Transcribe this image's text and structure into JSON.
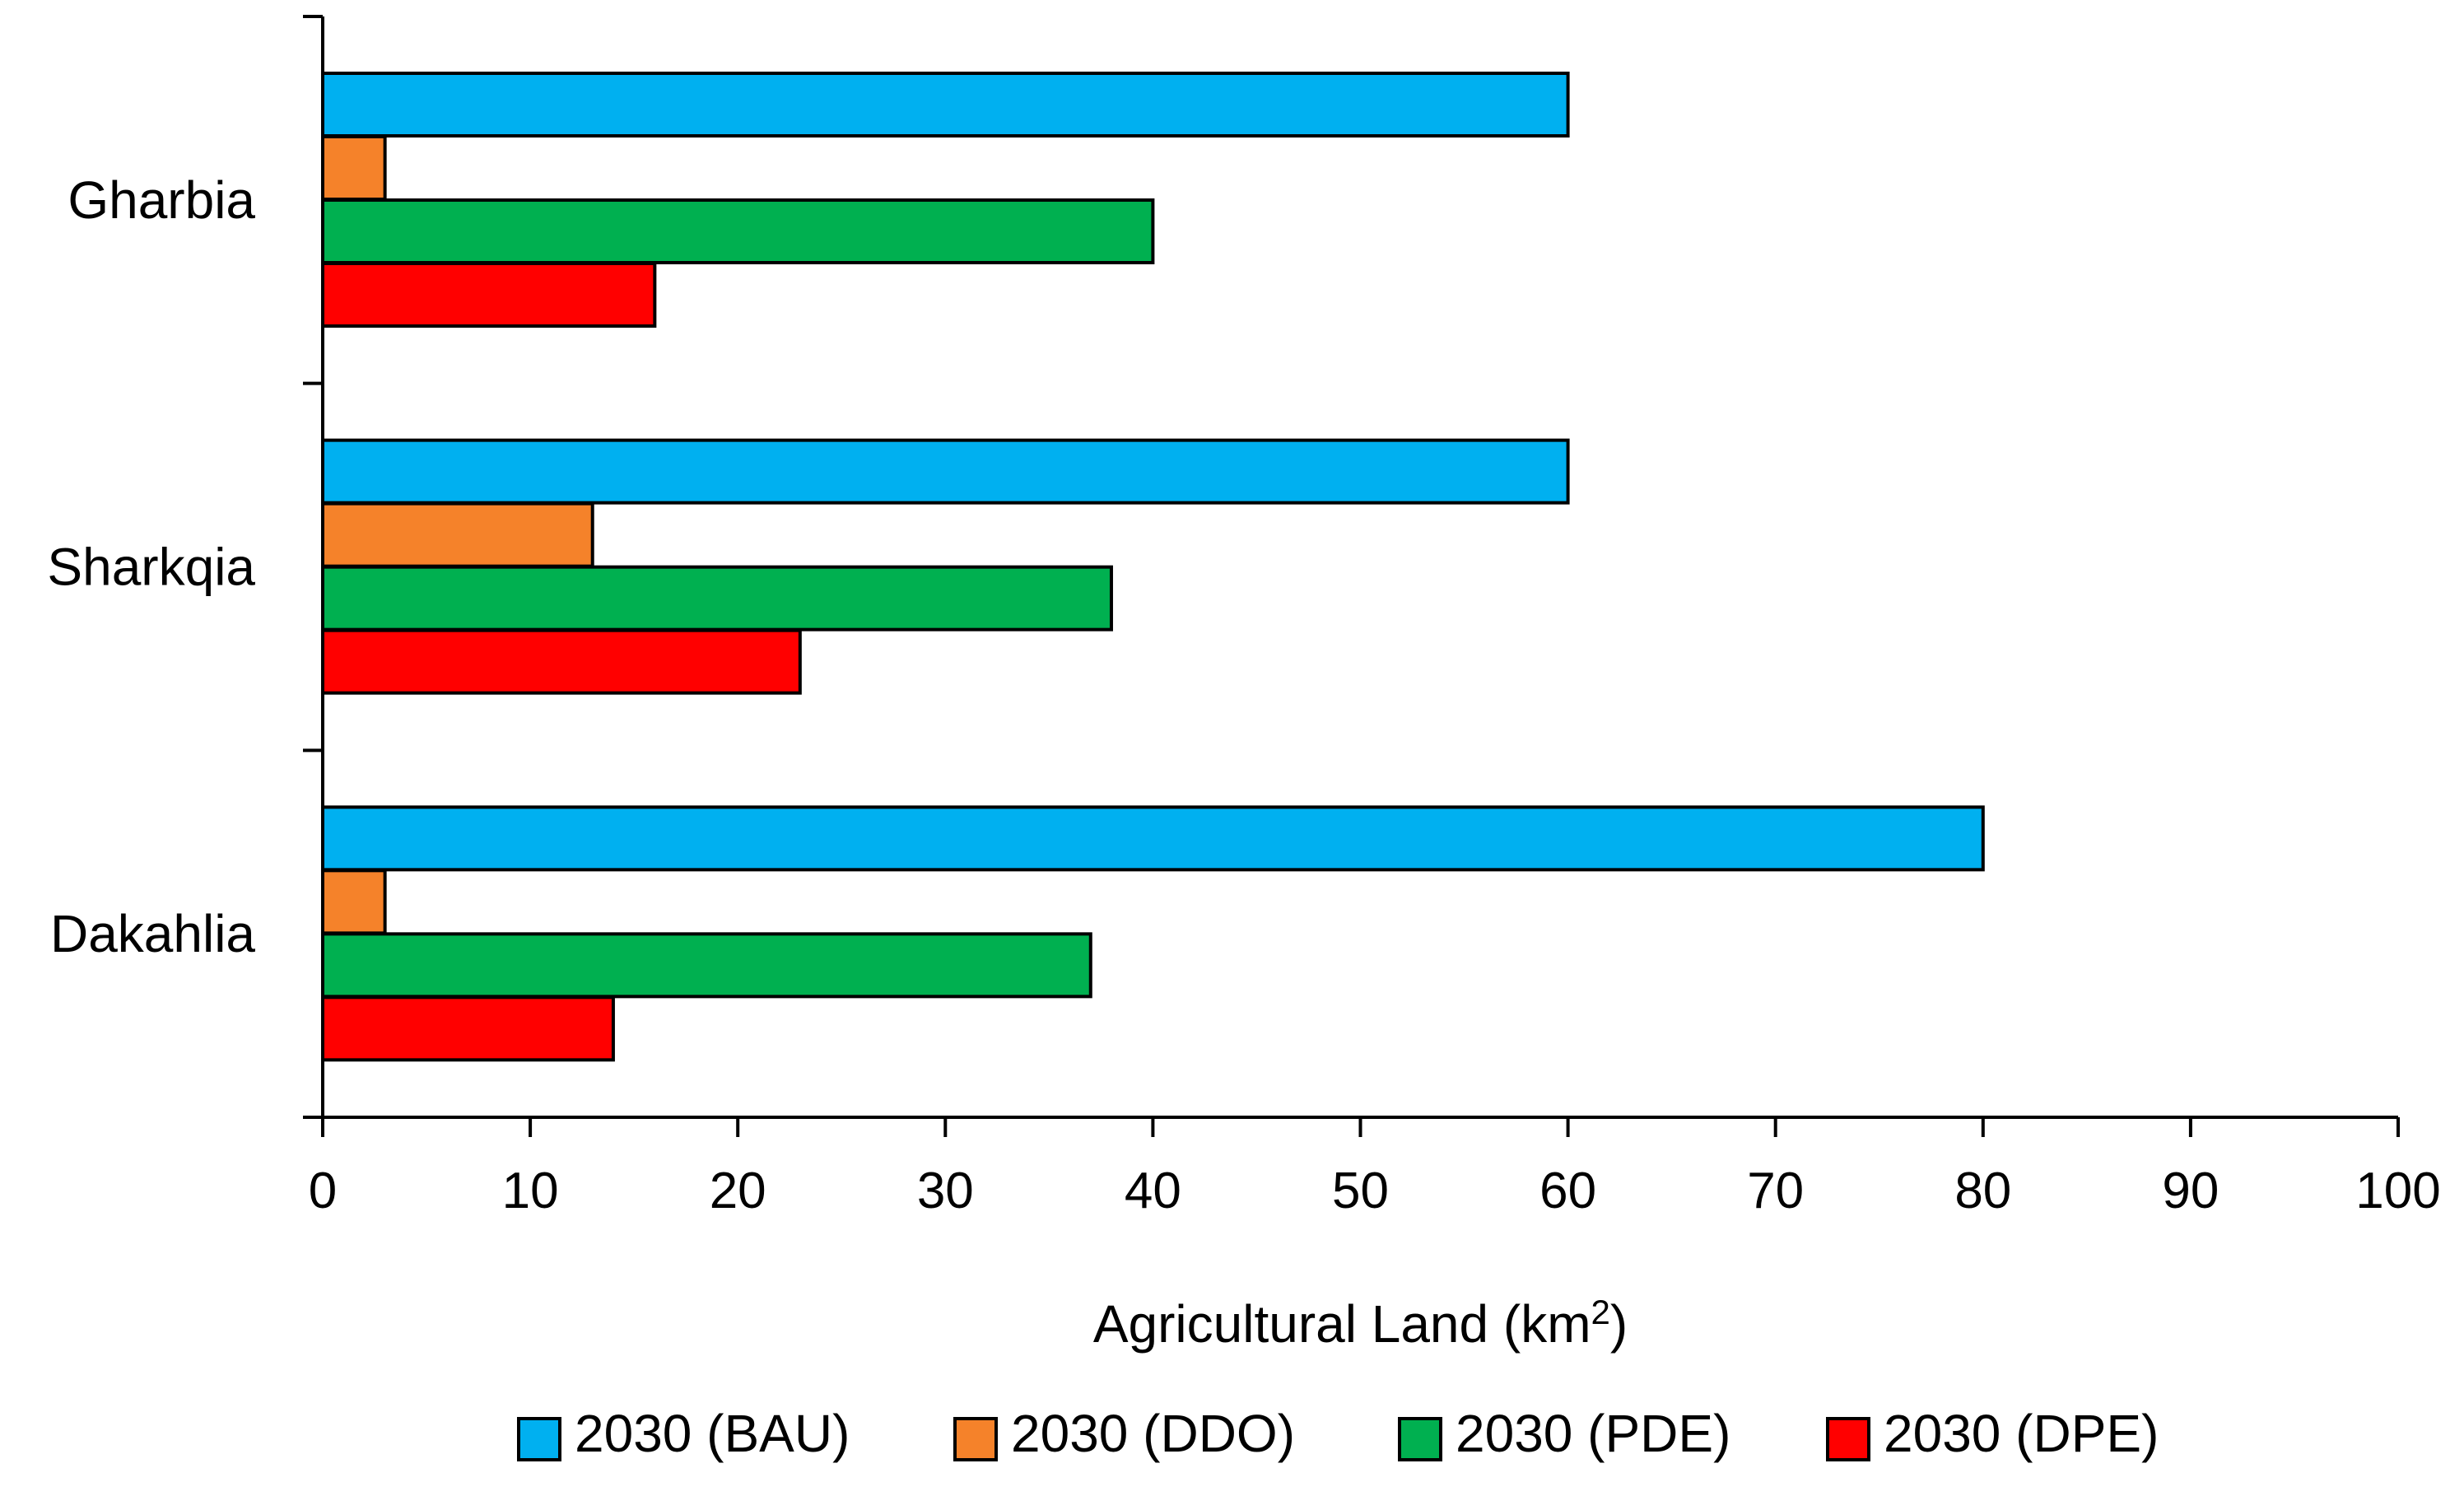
{
  "chart_data": {
    "type": "bar",
    "orientation": "horizontal",
    "title": "",
    "xlabel": {
      "main": "Agricultural Land (km",
      "sup": "2",
      "tail": ")"
    },
    "ylabel": "",
    "xlim": [
      0,
      100
    ],
    "x_ticks": [
      0,
      10,
      20,
      30,
      40,
      50,
      60,
      70,
      80,
      90,
      100
    ],
    "categories": [
      "Gharbia",
      "Sharkqia",
      "Dakahlia"
    ],
    "series": [
      {
        "name": "2030 (BAU)",
        "color": "#00B0F0",
        "values": [
          60,
          60,
          80
        ]
      },
      {
        "name": "2030 (DDO)",
        "color": "#F5822A",
        "values": [
          3,
          13,
          3
        ]
      },
      {
        "name": "2030 (PDE)",
        "color": "#00B050",
        "values": [
          40,
          38,
          37
        ]
      },
      {
        "name": "2030 (DPE)",
        "color": "#FF0000",
        "values": [
          16,
          23,
          14
        ]
      }
    ],
    "grid": false,
    "legend_position": "bottom"
  }
}
